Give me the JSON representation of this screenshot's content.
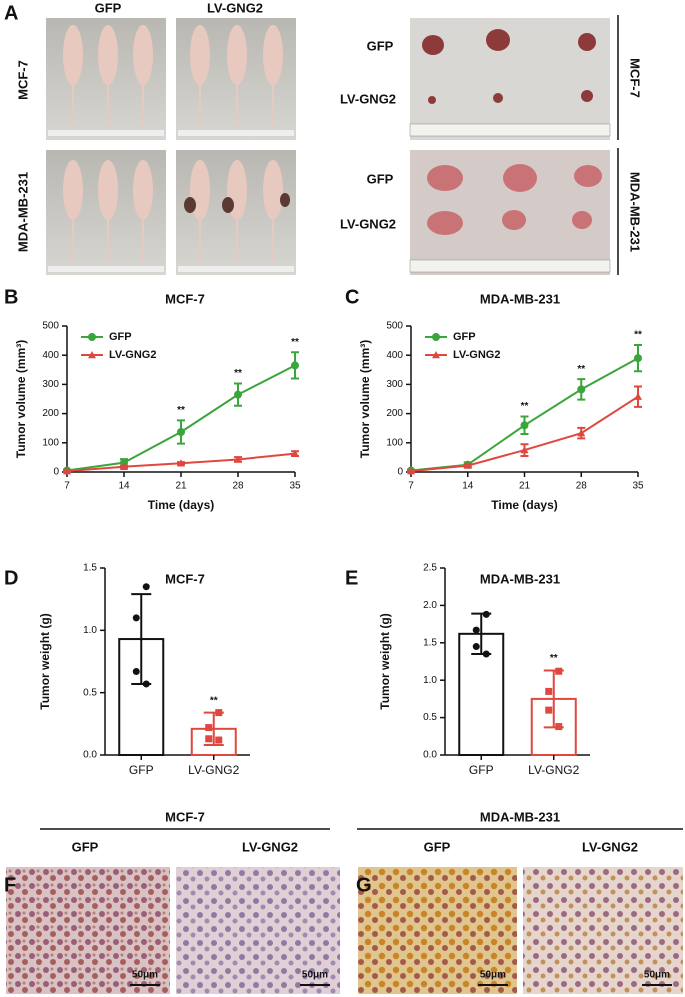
{
  "panel_letters": [
    "A",
    "B",
    "C",
    "D",
    "E",
    "F",
    "G"
  ],
  "panel_a": {
    "columns": [
      "GFP",
      "LV-GNG2"
    ],
    "rows": [
      "MCF-7",
      "MDA-MB-231"
    ]
  },
  "panel_f": {
    "title": "MCF-7",
    "columns": [
      "GFP",
      "LV-GNG2"
    ],
    "scale_bar": "50μm"
  },
  "panel_g": {
    "title": "MDA-MB-231",
    "columns": [
      "GFP",
      "LV-GNG2"
    ],
    "scale_bar": "50μm"
  },
  "chart_data": [
    {
      "type": "line",
      "title": "MCF-7",
      "x_label": "Time (days)",
      "y_label": "Tumor volume (mm³)",
      "x": [
        7,
        14,
        21,
        28,
        35
      ],
      "xlim": [
        7,
        35
      ],
      "xticks": [
        7,
        14,
        21,
        28,
        35
      ],
      "ylim": [
        0,
        500
      ],
      "yticks": [
        0,
        100,
        200,
        300,
        400,
        500
      ],
      "series": [
        {
          "name": "GFP",
          "color": "#3aa53a",
          "marker": "circle",
          "values": [
            5,
            32,
            137,
            265,
            365
          ],
          "errors": [
            3,
            12,
            40,
            38,
            45
          ]
        },
        {
          "name": "LV-GNG2",
          "color": "#e0473f",
          "marker": "triangle",
          "values": [
            3,
            18,
            30,
            43,
            63
          ],
          "errors": [
            2,
            4,
            4,
            8,
            8
          ]
        }
      ],
      "annotations": [
        {
          "x": 21,
          "text": "**"
        },
        {
          "x": 28,
          "text": "**"
        },
        {
          "x": 35,
          "text": "**"
        }
      ]
    },
    {
      "type": "line",
      "title": "MDA-MB-231",
      "x_label": "Time (days)",
      "y_label": "Tumor volume (mm³)",
      "x": [
        7,
        14,
        21,
        28,
        35
      ],
      "xlim": [
        7,
        35
      ],
      "xticks": [
        7,
        14,
        21,
        28,
        35
      ],
      "ylim": [
        0,
        500
      ],
      "yticks": [
        0,
        100,
        200,
        300,
        400,
        500
      ],
      "series": [
        {
          "name": "GFP",
          "color": "#3aa53a",
          "marker": "circle",
          "values": [
            5,
            25,
            160,
            283,
            390
          ],
          "errors": [
            3,
            8,
            30,
            35,
            45
          ]
        },
        {
          "name": "LV-GNG2",
          "color": "#e0473f",
          "marker": "triangle",
          "values": [
            3,
            22,
            75,
            133,
            258
          ],
          "errors": [
            2,
            6,
            20,
            18,
            35
          ]
        }
      ],
      "annotations": [
        {
          "x": 21,
          "text": "**"
        },
        {
          "x": 28,
          "text": "**"
        },
        {
          "x": 35,
          "text": "**"
        }
      ]
    },
    {
      "type": "bar",
      "title": "MCF-7",
      "y_label": "Tumor weight (g)",
      "categories": [
        "GFP",
        "LV-GNG2"
      ],
      "values": [
        0.93,
        0.21
      ],
      "errors": [
        0.36,
        0.13
      ],
      "colors": [
        "#111111",
        "#e0473f"
      ],
      "markers": [
        "circle",
        "square"
      ],
      "points": [
        [
          1.35,
          1.1,
          0.67,
          0.57
        ],
        [
          0.34,
          0.22,
          0.13,
          0.12
        ]
      ],
      "ylim": [
        0,
        1.5
      ],
      "yticks": [
        {
          "value": 0,
          "label": "0.0"
        },
        0.5,
        {
          "value": 1,
          "label": "1.0"
        },
        1.5
      ],
      "annotations": [
        {
          "category": 1,
          "text": "**"
        }
      ]
    },
    {
      "type": "bar",
      "title": "MDA-MB-231",
      "y_label": "Tumor weight (g)",
      "categories": [
        "GFP",
        "LV-GNG2"
      ],
      "values": [
        1.62,
        0.75
      ],
      "errors": [
        0.27,
        0.38
      ],
      "colors": [
        "#111111",
        "#e0473f"
      ],
      "markers": [
        "circle",
        "square"
      ],
      "points": [
        [
          1.88,
          1.67,
          1.45,
          1.35
        ],
        [
          1.12,
          0.85,
          0.6,
          0.38
        ]
      ],
      "ylim": [
        0,
        2.5
      ],
      "yticks": [
        {
          "value": 0,
          "label": "0.0"
        },
        0.5,
        {
          "value": 1,
          "label": "1.0"
        },
        1.5,
        {
          "value": 2,
          "label": "2.0"
        },
        2.5
      ],
      "annotations": [
        {
          "category": 1,
          "text": "**"
        }
      ]
    }
  ]
}
